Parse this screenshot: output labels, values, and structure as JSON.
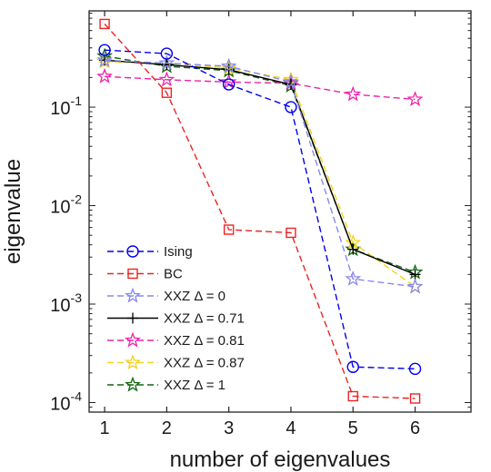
{
  "chart_data": {
    "type": "line",
    "xlabel": "number of eigenvalues",
    "ylabel": "eigenvalue",
    "yscale": "log",
    "xlim": [
      0.75,
      6.9
    ],
    "ylim": [
      8e-05,
      0.95
    ],
    "xticks": [
      1,
      2,
      3,
      4,
      5,
      6
    ],
    "yticks": [
      {
        "value": 0.1,
        "base": "10",
        "exp": "-1"
      },
      {
        "value": 0.01,
        "base": "10",
        "exp": "-2"
      },
      {
        "value": 0.001,
        "base": "10",
        "exp": "-3"
      },
      {
        "value": 0.0001,
        "base": "10",
        "exp": "-4"
      }
    ],
    "grid": false,
    "legend_position": "bottom-left",
    "x": [
      1,
      2,
      3,
      4,
      5,
      6
    ],
    "series": [
      {
        "name": "Ising",
        "color": "#0000ee",
        "marker": "circle",
        "dashed": true,
        "values": [
          0.38,
          0.35,
          0.17,
          0.1,
          0.00023,
          0.00022
        ]
      },
      {
        "name": "BC",
        "color": "#ee2222",
        "marker": "square",
        "dashed": true,
        "values": [
          0.7,
          0.14,
          0.0057,
          0.0053,
          0.000116,
          0.00011
        ]
      },
      {
        "name": "XXZ Δ = 0",
        "color": "#8888ee",
        "marker": "star",
        "dashed": true,
        "values": [
          0.3,
          0.28,
          0.26,
          0.18,
          0.0018,
          0.0015
        ]
      },
      {
        "name": "XXZ Δ = 0.71",
        "color": "#000000",
        "marker": "plus",
        "dashed": false,
        "values": [
          0.3,
          0.27,
          0.24,
          0.17,
          0.0036,
          0.002
        ]
      },
      {
        "name": "XXZ Δ = 0.81",
        "color": "#ee22aa",
        "marker": "star",
        "dashed": true,
        "values": [
          0.205,
          0.19,
          0.18,
          0.175,
          0.135,
          0.12
        ]
      },
      {
        "name": "XXZ Δ = 0.87",
        "color": "#f2d21e",
        "marker": "star",
        "dashed": true,
        "values": [
          0.29,
          0.28,
          0.25,
          0.19,
          0.0042,
          0.0015
        ]
      },
      {
        "name": "XXZ Δ = 1",
        "color": "#126612",
        "marker": "star",
        "dashed": true,
        "values": [
          0.33,
          0.26,
          0.235,
          0.165,
          0.0036,
          0.0021
        ]
      }
    ]
  }
}
